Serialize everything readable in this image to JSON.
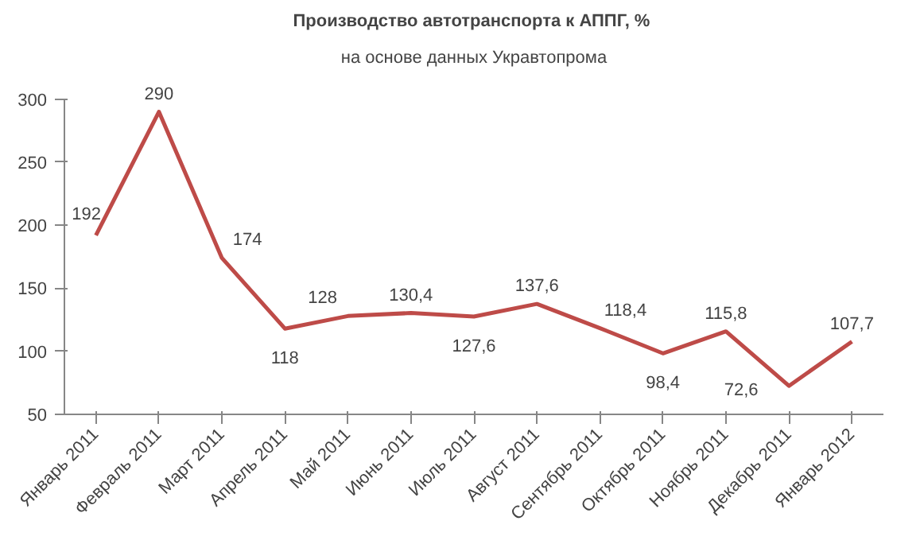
{
  "chart_data": {
    "type": "line",
    "title": "Производство автотранспорта  к АППГ, %",
    "subtitle": "на основе данных Укравтопрома",
    "categories": [
      "Январь 2011",
      "Февраль 2011",
      "Март 2011",
      "Апрель 2011",
      "Май 2011",
      "Июнь 2011",
      "Июль 2011",
      "Август 2011",
      "Сентябрь 2011",
      "Октябрь 2011",
      "Ноябрь 2011",
      "Декабрь 2011",
      "Январь 2012"
    ],
    "series": [
      {
        "color": "#be4b48",
        "values": [
          192,
          290,
          174,
          118,
          128,
          130.4,
          127.6,
          137.6,
          118.4,
          98.4,
          115.8,
          72.6,
          107.7
        ],
        "value_labels": [
          "192",
          "290",
          "174",
          "118",
          "128",
          "130,4",
          "127,6",
          "137,6",
          "118,4",
          "98,4",
          "115,8",
          "72,6",
          "107,7"
        ]
      }
    ],
    "ylim": [
      50,
      300
    ],
    "yticks": [
      50,
      100,
      150,
      200,
      250,
      300
    ],
    "grid": false,
    "marker": "none",
    "line_style": "solid"
  }
}
